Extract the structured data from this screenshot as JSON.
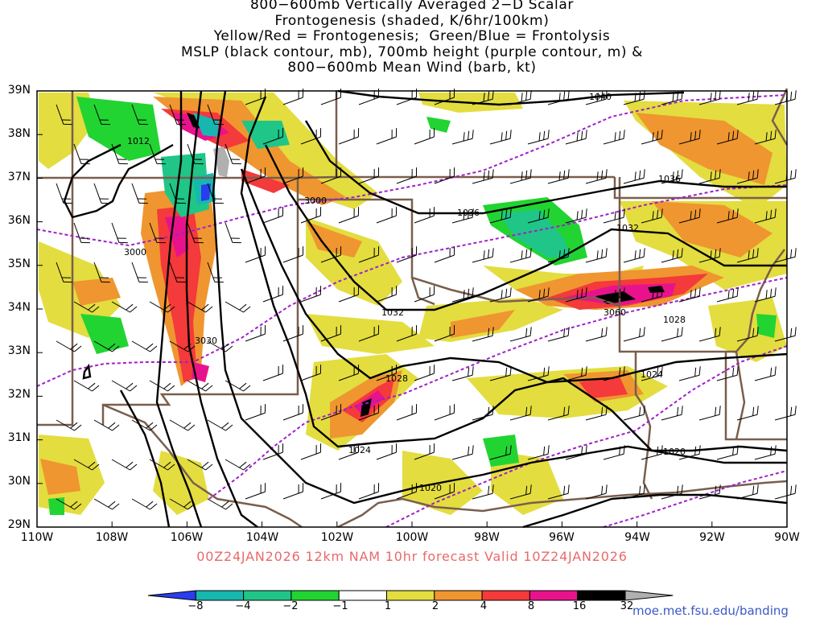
{
  "title_lines": [
    "800−600mb Vertically Averaged 2−D Scalar",
    "Frontogenesis (shaded, K/6hr/100km)",
    "Yellow/Red = Frontogenesis;  Green/Blue = Frontolysis",
    "MSLP (black contour, mb), 700mb height (purple contour, m) &",
    "800−600mb Mean Wind (barb, kt)"
  ],
  "lat_labels": [
    "39N",
    "38N",
    "37N",
    "36N",
    "35N",
    "34N",
    "33N",
    "32N",
    "31N",
    "30N",
    "29N"
  ],
  "lon_labels": [
    "110W",
    "108W",
    "106W",
    "104W",
    "102W",
    "100W",
    "98W",
    "96W",
    "94W",
    "92W",
    "90W"
  ],
  "valid_text": "00Z24JAN2026 12km NAM 10hr forecast Valid 10Z24JAN2026",
  "colorbar": {
    "labels": [
      "−8",
      "−4",
      "−2",
      "−1",
      "1",
      "2",
      "4",
      "8",
      "16",
      "32"
    ],
    "colors": [
      "#2a3cf0",
      "#17b7b0",
      "#1fc688",
      "#22d432",
      "#ffffff",
      "#e3dd3f",
      "#ef9630",
      "#f43a3a",
      "#e8138c",
      "#000000",
      "#b0b0b0"
    ]
  },
  "contour_labels": {
    "mslp": [
      "1040",
      "1036",
      "1036",
      "1032",
      "1032",
      "1028",
      "1028",
      "1024",
      "1024",
      "1020",
      "1020",
      "1012"
    ],
    "height": [
      "3000",
      "3000",
      "3030",
      "3060"
    ]
  },
  "colors": {
    "mslp": "#000000",
    "height": "#a020c8",
    "borders": "#7a5e4c",
    "valid_text": "#e86a6a",
    "url": "#3b58c8"
  },
  "url": "moe.met.fsu.edu/banding"
}
